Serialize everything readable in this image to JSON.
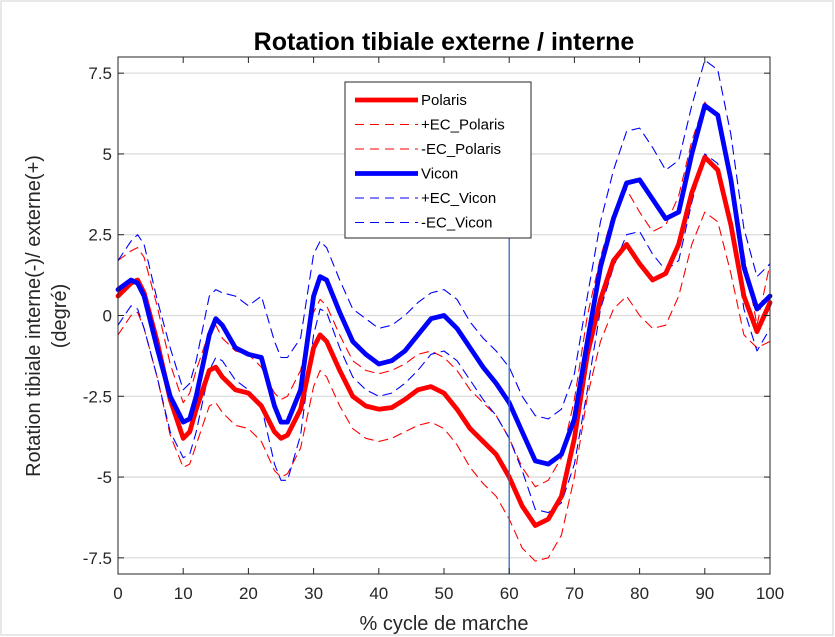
{
  "chart_data": {
    "type": "line",
    "title": "Rotation tibiale externe /  interne",
    "xlabel": "% cycle de marche",
    "ylabel_line1": "Rotation tibiale interne(-)/ externe(+)",
    "ylabel_line2": "(degré)",
    "xlim": [
      0,
      100
    ],
    "ylim": [
      -8,
      8
    ],
    "x_ticks": [
      0,
      10,
      20,
      30,
      40,
      50,
      60,
      70,
      80,
      90,
      100
    ],
    "y_ticks": [
      -7.5,
      -5,
      -2.5,
      0,
      2.5,
      5,
      7.5
    ],
    "y_tick_labels": [
      "-7.5",
      "-5",
      "-2.5",
      "0",
      "2.5",
      "5",
      "7.5"
    ],
    "grid": "horizontal",
    "legend_position": "top-center",
    "vertical_marker_x": 60,
    "x": [
      0,
      2,
      3,
      4,
      6,
      8,
      10,
      11,
      12,
      14,
      15,
      16,
      18,
      20,
      22,
      24,
      25,
      26,
      28,
      30,
      31,
      32,
      34,
      36,
      38,
      40,
      42,
      44,
      46,
      48,
      50,
      52,
      54,
      56,
      58,
      60,
      62,
      64,
      66,
      68,
      70,
      72,
      74,
      76,
      78,
      80,
      82,
      84,
      86,
      88,
      90,
      92,
      94,
      96,
      98,
      100
    ],
    "series": [
      {
        "name": "Polaris",
        "color": "#ff0000",
        "style": "solid",
        "values": [
          0.6,
          1.0,
          1.1,
          0.7,
          -0.8,
          -2.6,
          -3.8,
          -3.6,
          -2.9,
          -1.7,
          -1.6,
          -1.9,
          -2.3,
          -2.4,
          -2.8,
          -3.6,
          -3.8,
          -3.7,
          -2.9,
          -1.0,
          -0.6,
          -0.8,
          -1.7,
          -2.5,
          -2.8,
          -2.9,
          -2.85,
          -2.6,
          -2.3,
          -2.2,
          -2.4,
          -2.9,
          -3.5,
          -3.9,
          -4.3,
          -5.0,
          -5.9,
          -6.5,
          -6.3,
          -5.6,
          -3.8,
          -1.2,
          0.5,
          1.7,
          2.2,
          1.6,
          1.1,
          1.3,
          2.2,
          3.8,
          4.9,
          4.5,
          2.8,
          0.6,
          -0.5,
          0.4
        ]
      },
      {
        "name": "+EC_Polaris",
        "color": "#ff0000",
        "style": "dashed",
        "values": [
          1.7,
          2.0,
          2.1,
          1.8,
          0.3,
          -1.5,
          -2.7,
          -2.4,
          -1.7,
          -0.5,
          -0.3,
          -0.7,
          -1.1,
          -1.2,
          -1.6,
          -2.4,
          -2.6,
          -2.5,
          -1.7,
          0.1,
          0.5,
          0.3,
          -0.6,
          -1.4,
          -1.7,
          -1.8,
          -1.7,
          -1.5,
          -1.2,
          -1.1,
          -1.3,
          -1.7,
          -2.3,
          -2.7,
          -3.1,
          -3.8,
          -4.7,
          -5.3,
          -5.1,
          -4.4,
          -2.6,
          0.0,
          1.8,
          3.2,
          3.9,
          3.2,
          2.6,
          2.8,
          3.7,
          5.4,
          6.6,
          6.1,
          4.4,
          1.9,
          -0.3,
          1.6
        ]
      },
      {
        "name": "-EC_Polaris",
        "color": "#ff0000",
        "style": "dashed",
        "values": [
          -0.6,
          0.0,
          0.1,
          -0.4,
          -1.9,
          -3.7,
          -4.7,
          -4.6,
          -4.0,
          -2.8,
          -2.7,
          -3.0,
          -3.4,
          -3.5,
          -3.9,
          -4.8,
          -5.0,
          -4.9,
          -4.1,
          -2.2,
          -1.7,
          -1.9,
          -2.8,
          -3.5,
          -3.8,
          -3.9,
          -3.8,
          -3.6,
          -3.4,
          -3.3,
          -3.5,
          -4.0,
          -4.7,
          -5.2,
          -5.6,
          -6.3,
          -7.2,
          -7.6,
          -7.5,
          -6.8,
          -5.0,
          -2.5,
          -0.8,
          0.2,
          0.6,
          0.0,
          -0.4,
          -0.3,
          0.6,
          2.2,
          3.2,
          2.9,
          1.3,
          -0.6,
          -1.0,
          -0.8
        ]
      },
      {
        "name": "Vicon",
        "color": "#0000ff",
        "style": "solid",
        "values": [
          0.8,
          1.1,
          1.0,
          0.6,
          -1.0,
          -2.5,
          -3.3,
          -3.2,
          -2.5,
          -0.6,
          -0.1,
          -0.3,
          -1.0,
          -1.2,
          -1.3,
          -2.8,
          -3.3,
          -3.3,
          -2.3,
          0.6,
          1.2,
          1.1,
          0.1,
          -0.8,
          -1.2,
          -1.5,
          -1.4,
          -1.1,
          -0.6,
          -0.1,
          0.0,
          -0.4,
          -1.0,
          -1.6,
          -2.1,
          -2.7,
          -3.6,
          -4.5,
          -4.6,
          -4.3,
          -3.2,
          -0.8,
          1.5,
          3.0,
          4.1,
          4.2,
          3.6,
          3.0,
          3.2,
          5.0,
          6.5,
          6.2,
          4.2,
          1.5,
          0.2,
          0.6
        ]
      },
      {
        "name": "+EC_Vicon",
        "color": "#0000ff",
        "style": "dashed",
        "values": [
          1.7,
          2.3,
          2.5,
          2.2,
          0.5,
          -1.0,
          -2.3,
          -2.1,
          -1.4,
          0.6,
          0.8,
          0.7,
          0.6,
          0.3,
          0.6,
          -0.8,
          -1.3,
          -1.3,
          -0.7,
          1.9,
          2.3,
          2.1,
          1.1,
          0.2,
          -0.1,
          -0.4,
          -0.3,
          0.0,
          0.4,
          0.7,
          0.8,
          0.5,
          -0.2,
          -0.7,
          -1.1,
          -1.6,
          -2.5,
          -3.1,
          -3.2,
          -2.9,
          -1.8,
          0.6,
          2.9,
          4.5,
          5.7,
          5.8,
          5.2,
          4.5,
          4.8,
          6.5,
          7.9,
          7.6,
          5.6,
          2.7,
          1.2,
          1.6
        ]
      },
      {
        "name": "-EC_Vicon",
        "color": "#0000ff",
        "style": "dashed",
        "values": [
          -0.3,
          0.3,
          0.2,
          -0.4,
          -1.9,
          -3.6,
          -4.4,
          -4.3,
          -3.6,
          -1.7,
          -1.3,
          -1.4,
          -2.0,
          -2.3,
          -2.8,
          -4.6,
          -5.1,
          -5.1,
          -3.7,
          -0.6,
          0.2,
          0.1,
          -1.0,
          -1.9,
          -2.3,
          -2.5,
          -2.4,
          -2.1,
          -1.7,
          -1.2,
          -1.1,
          -1.4,
          -2.0,
          -2.6,
          -3.1,
          -3.8,
          -4.8,
          -6.0,
          -6.1,
          -5.8,
          -4.6,
          -2.3,
          0.2,
          1.5,
          2.5,
          2.6,
          1.9,
          1.4,
          1.7,
          3.5,
          5.0,
          4.7,
          2.9,
          0.2,
          -1.1,
          -0.4
        ]
      }
    ]
  }
}
